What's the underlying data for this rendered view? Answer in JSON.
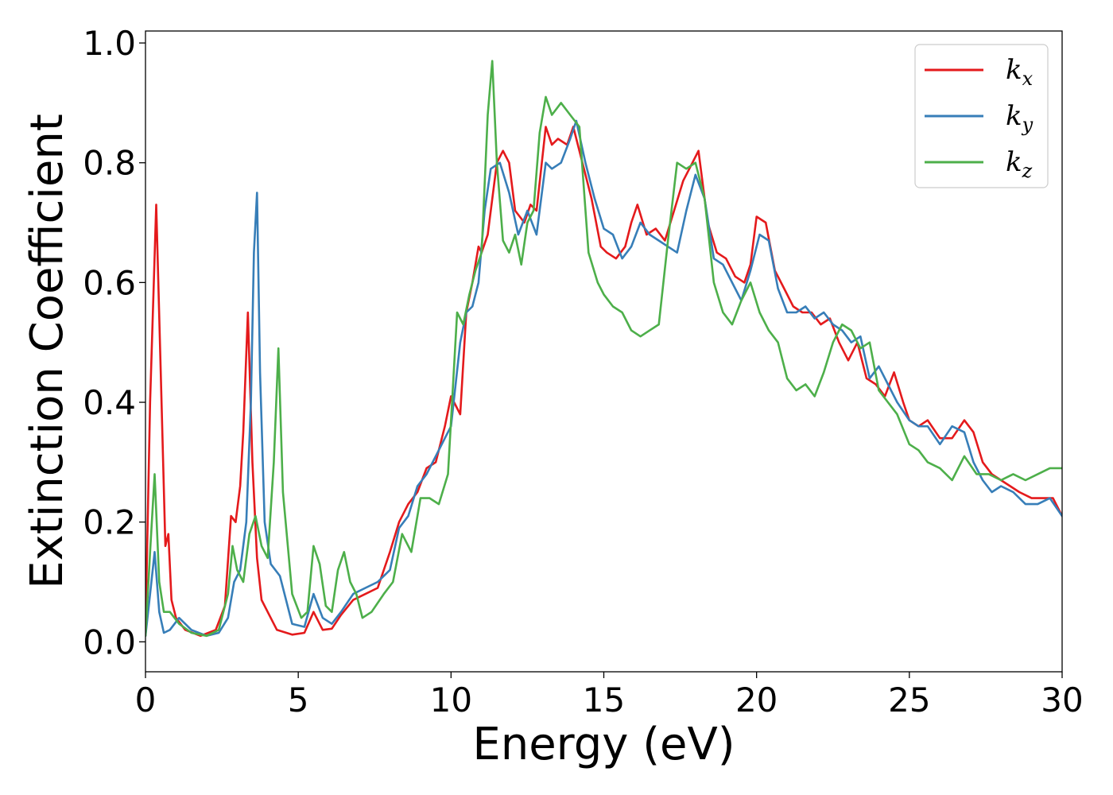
{
  "chart_data": {
    "type": "line",
    "title": "",
    "xlabel": "Energy (eV)",
    "ylabel": "Extinction Coefficient",
    "xlim": [
      0,
      30
    ],
    "ylim": [
      -0.05,
      1.02
    ],
    "xticks": [
      0,
      5,
      10,
      15,
      20,
      25,
      30
    ],
    "xtick_labels": [
      "0",
      "5",
      "10",
      "15",
      "20",
      "25",
      "30"
    ],
    "yticks": [
      0.0,
      0.2,
      0.4,
      0.6,
      0.8,
      1.0
    ],
    "ytick_labels": [
      "0.0",
      "0.2",
      "0.4",
      "0.6",
      "0.8",
      "1.0"
    ],
    "grid": false,
    "legend_position": "top-right",
    "series": [
      {
        "name": "k_x",
        "label_main": "k",
        "label_sub": "x",
        "color": "#e41a1c",
        "x": [
          0,
          0.15,
          0.35,
          0.5,
          0.65,
          0.75,
          0.85,
          1.0,
          1.3,
          1.8,
          2.3,
          2.6,
          2.8,
          2.95,
          3.1,
          3.2,
          3.35,
          3.5,
          3.65,
          3.8,
          4.0,
          4.3,
          4.8,
          5.2,
          5.5,
          5.8,
          6.1,
          6.4,
          6.8,
          7.2,
          7.6,
          8.0,
          8.3,
          8.6,
          8.9,
          9.2,
          9.5,
          9.8,
          10.0,
          10.3,
          10.5,
          10.7,
          10.9,
          11.0,
          11.2,
          11.5,
          11.7,
          11.9,
          12.1,
          12.4,
          12.6,
          12.8,
          13.1,
          13.3,
          13.5,
          13.8,
          14.0,
          14.3,
          14.6,
          14.9,
          15.1,
          15.4,
          15.7,
          15.9,
          16.1,
          16.4,
          16.7,
          17.0,
          17.3,
          17.6,
          17.9,
          18.1,
          18.4,
          18.7,
          19.0,
          19.3,
          19.6,
          19.8,
          20.0,
          20.3,
          20.6,
          20.9,
          21.2,
          21.5,
          21.8,
          22.1,
          22.4,
          22.7,
          23.0,
          23.3,
          23.6,
          23.9,
          24.2,
          24.5,
          24.8,
          25.0,
          25.3,
          25.6,
          26.0,
          26.4,
          26.8,
          27.1,
          27.4,
          27.7,
          28.0,
          28.3,
          28.6,
          29.0,
          29.4,
          29.7,
          30.0
        ],
        "y": [
          0.02,
          0.4,
          0.73,
          0.45,
          0.16,
          0.18,
          0.07,
          0.04,
          0.02,
          0.01,
          0.02,
          0.06,
          0.21,
          0.2,
          0.26,
          0.35,
          0.55,
          0.3,
          0.14,
          0.07,
          0.05,
          0.02,
          0.012,
          0.015,
          0.05,
          0.02,
          0.022,
          0.045,
          0.07,
          0.08,
          0.09,
          0.15,
          0.2,
          0.23,
          0.25,
          0.29,
          0.3,
          0.36,
          0.41,
          0.38,
          0.55,
          0.6,
          0.66,
          0.65,
          0.68,
          0.8,
          0.82,
          0.8,
          0.72,
          0.7,
          0.73,
          0.72,
          0.86,
          0.83,
          0.84,
          0.83,
          0.86,
          0.8,
          0.74,
          0.66,
          0.65,
          0.64,
          0.66,
          0.7,
          0.73,
          0.68,
          0.69,
          0.67,
          0.72,
          0.77,
          0.8,
          0.82,
          0.7,
          0.65,
          0.64,
          0.61,
          0.6,
          0.63,
          0.71,
          0.7,
          0.62,
          0.59,
          0.56,
          0.55,
          0.55,
          0.53,
          0.54,
          0.5,
          0.47,
          0.5,
          0.44,
          0.43,
          0.41,
          0.45,
          0.4,
          0.37,
          0.36,
          0.37,
          0.34,
          0.34,
          0.37,
          0.35,
          0.3,
          0.28,
          0.27,
          0.26,
          0.25,
          0.24,
          0.24,
          0.24,
          0.21
        ]
      },
      {
        "name": "k_y",
        "label_main": "k",
        "label_sub": "y",
        "color": "#377eb8",
        "x": [
          0,
          0.15,
          0.3,
          0.45,
          0.6,
          0.8,
          1.1,
          1.5,
          2.0,
          2.4,
          2.7,
          2.9,
          3.1,
          3.3,
          3.45,
          3.55,
          3.65,
          3.75,
          3.9,
          4.1,
          4.4,
          4.8,
          5.2,
          5.5,
          5.8,
          6.1,
          6.4,
          6.8,
          7.2,
          7.6,
          8.0,
          8.3,
          8.6,
          8.9,
          9.2,
          9.5,
          9.8,
          10.0,
          10.3,
          10.5,
          10.7,
          10.9,
          11.1,
          11.3,
          11.6,
          11.9,
          12.2,
          12.5,
          12.8,
          13.1,
          13.3,
          13.6,
          13.9,
          14.1,
          14.4,
          14.7,
          15.0,
          15.3,
          15.6,
          15.9,
          16.2,
          16.5,
          16.8,
          17.1,
          17.4,
          17.7,
          18.0,
          18.3,
          18.6,
          18.9,
          19.2,
          19.5,
          19.8,
          20.1,
          20.4,
          20.7,
          21.0,
          21.3,
          21.6,
          21.9,
          22.2,
          22.5,
          22.8,
          23.1,
          23.4,
          23.7,
          24.0,
          24.3,
          24.6,
          25.0,
          25.3,
          25.6,
          26.0,
          26.4,
          26.8,
          27.1,
          27.4,
          27.7,
          28.0,
          28.4,
          28.8,
          29.2,
          29.6,
          30.0
        ],
        "y": [
          0.01,
          0.08,
          0.15,
          0.05,
          0.015,
          0.02,
          0.04,
          0.02,
          0.01,
          0.015,
          0.04,
          0.1,
          0.12,
          0.2,
          0.4,
          0.65,
          0.75,
          0.45,
          0.2,
          0.13,
          0.11,
          0.03,
          0.025,
          0.08,
          0.04,
          0.03,
          0.05,
          0.08,
          0.09,
          0.1,
          0.12,
          0.19,
          0.21,
          0.26,
          0.28,
          0.31,
          0.34,
          0.36,
          0.5,
          0.55,
          0.56,
          0.6,
          0.72,
          0.79,
          0.8,
          0.75,
          0.68,
          0.72,
          0.68,
          0.8,
          0.79,
          0.8,
          0.84,
          0.87,
          0.8,
          0.74,
          0.69,
          0.68,
          0.64,
          0.66,
          0.7,
          0.68,
          0.67,
          0.66,
          0.65,
          0.72,
          0.78,
          0.74,
          0.64,
          0.63,
          0.6,
          0.57,
          0.62,
          0.68,
          0.67,
          0.59,
          0.55,
          0.55,
          0.56,
          0.54,
          0.55,
          0.53,
          0.52,
          0.5,
          0.51,
          0.44,
          0.46,
          0.43,
          0.4,
          0.37,
          0.36,
          0.36,
          0.33,
          0.36,
          0.35,
          0.3,
          0.27,
          0.25,
          0.26,
          0.25,
          0.23,
          0.23,
          0.24,
          0.21
        ]
      },
      {
        "name": "k_z",
        "label_main": "k",
        "label_sub": "z",
        "color": "#4daf4a",
        "x": [
          0,
          0.15,
          0.3,
          0.45,
          0.6,
          0.8,
          1.1,
          1.5,
          2.0,
          2.4,
          2.7,
          2.85,
          3.0,
          3.2,
          3.4,
          3.6,
          3.8,
          4.0,
          4.2,
          4.35,
          4.5,
          4.8,
          5.1,
          5.3,
          5.5,
          5.7,
          5.9,
          6.1,
          6.3,
          6.5,
          6.7,
          6.9,
          7.1,
          7.4,
          7.8,
          8.1,
          8.4,
          8.7,
          9.0,
          9.3,
          9.6,
          9.9,
          10.2,
          10.4,
          10.6,
          10.8,
          11.0,
          11.2,
          11.35,
          11.5,
          11.7,
          11.9,
          12.1,
          12.3,
          12.5,
          12.7,
          12.9,
          13.1,
          13.3,
          13.6,
          13.9,
          14.2,
          14.5,
          14.8,
          15.0,
          15.3,
          15.6,
          15.9,
          16.2,
          16.5,
          16.8,
          17.1,
          17.4,
          17.7,
          18.0,
          18.3,
          18.6,
          18.9,
          19.2,
          19.5,
          19.8,
          20.1,
          20.4,
          20.7,
          21.0,
          21.3,
          21.6,
          21.9,
          22.2,
          22.5,
          22.8,
          23.1,
          23.4,
          23.7,
          24.0,
          24.3,
          24.6,
          25.0,
          25.3,
          25.6,
          26.0,
          26.4,
          26.8,
          27.2,
          27.6,
          28.0,
          28.4,
          28.8,
          29.2,
          29.6,
          30.0
        ],
        "y": [
          0.01,
          0.15,
          0.28,
          0.1,
          0.05,
          0.05,
          0.03,
          0.015,
          0.01,
          0.02,
          0.08,
          0.16,
          0.12,
          0.1,
          0.18,
          0.21,
          0.16,
          0.14,
          0.3,
          0.49,
          0.25,
          0.08,
          0.04,
          0.05,
          0.16,
          0.13,
          0.06,
          0.05,
          0.12,
          0.15,
          0.1,
          0.08,
          0.04,
          0.05,
          0.08,
          0.1,
          0.18,
          0.15,
          0.24,
          0.24,
          0.23,
          0.28,
          0.55,
          0.53,
          0.58,
          0.62,
          0.65,
          0.88,
          0.97,
          0.8,
          0.67,
          0.65,
          0.68,
          0.63,
          0.7,
          0.72,
          0.85,
          0.91,
          0.88,
          0.9,
          0.88,
          0.86,
          0.65,
          0.6,
          0.58,
          0.56,
          0.55,
          0.52,
          0.51,
          0.52,
          0.53,
          0.67,
          0.8,
          0.79,
          0.8,
          0.74,
          0.6,
          0.55,
          0.53,
          0.57,
          0.6,
          0.55,
          0.52,
          0.5,
          0.44,
          0.42,
          0.43,
          0.41,
          0.45,
          0.5,
          0.53,
          0.52,
          0.49,
          0.5,
          0.42,
          0.4,
          0.38,
          0.33,
          0.32,
          0.3,
          0.29,
          0.27,
          0.31,
          0.28,
          0.28,
          0.27,
          0.28,
          0.27,
          0.28,
          0.29,
          0.29
        ]
      }
    ]
  }
}
